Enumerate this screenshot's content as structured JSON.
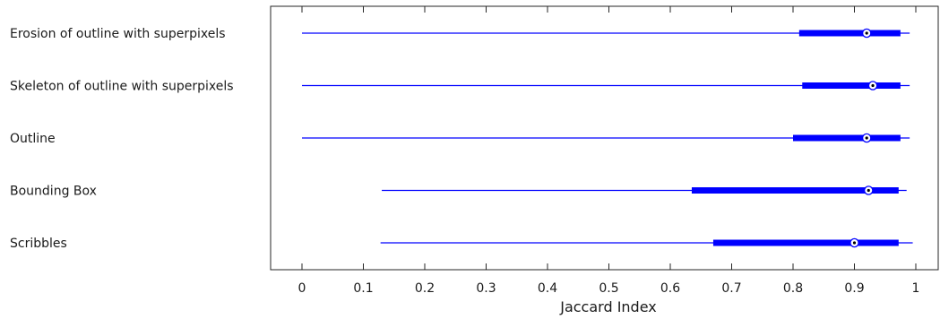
{
  "chart_data": {
    "type": "boxplot",
    "orientation": "horizontal",
    "xlabel": "Jaccard Index",
    "xlim": [
      -0.05,
      1.04
    ],
    "xticks": [
      "0",
      "0.1",
      "0.2",
      "0.3",
      "0.4",
      "0.5",
      "0.6",
      "0.7",
      "0.8",
      "0.9",
      "1"
    ],
    "grid": false,
    "color": "#0000ff",
    "categories": [
      "Erosion of outline with superpixels",
      "Skeleton of outline with superpixels",
      "Outline",
      "Bounding Box",
      "Scribbles"
    ],
    "series": [
      {
        "category": "Erosion of outline with superpixels",
        "min": 0.0,
        "q1": 0.81,
        "median": 0.92,
        "q3": 0.975,
        "max": 0.99
      },
      {
        "category": "Skeleton of outline with superpixels",
        "min": 0.0,
        "q1": 0.815,
        "median": 0.93,
        "q3": 0.975,
        "max": 0.99
      },
      {
        "category": "Outline",
        "min": 0.0,
        "q1": 0.8,
        "median": 0.92,
        "q3": 0.975,
        "max": 0.99
      },
      {
        "category": "Bounding Box",
        "min": 0.13,
        "q1": 0.635,
        "median": 0.923,
        "q3": 0.972,
        "max": 0.985
      },
      {
        "category": "Scribbles",
        "min": 0.128,
        "q1": 0.67,
        "median": 0.9,
        "q3": 0.972,
        "max": 0.995
      }
    ]
  }
}
